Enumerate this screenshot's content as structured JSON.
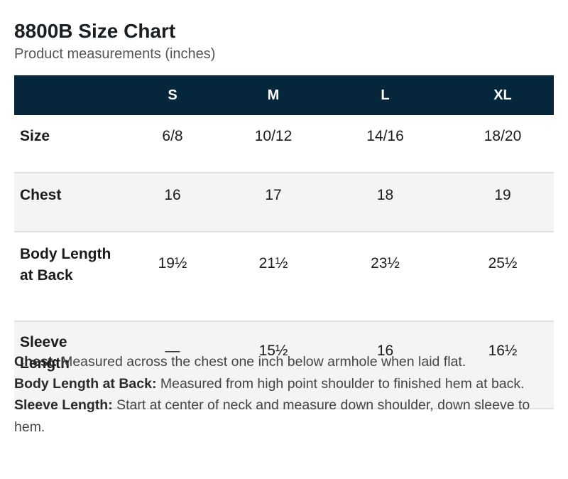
{
  "header": {
    "title": "8800B Size Chart",
    "subtitle": "Product measurements (inches)"
  },
  "table": {
    "columns": [
      "",
      "S",
      "M",
      "L",
      "XL"
    ],
    "rows": [
      {
        "label": "Size",
        "values": [
          "6/8",
          "10/12",
          "14/16",
          "18/20"
        ]
      },
      {
        "label": "Chest",
        "values": [
          "16",
          "17",
          "18",
          "19"
        ]
      },
      {
        "label_lines": [
          "Body Length",
          "at Back"
        ],
        "values": [
          "19½",
          "21½",
          "23½",
          "25½"
        ]
      },
      {
        "label_lines": [
          "Sleeve",
          "Length"
        ],
        "values": [
          "—",
          "15½",
          "16",
          "16½"
        ]
      }
    ]
  },
  "notes": [
    {
      "term": "Chest:",
      "text": " Measured across the chest one inch below armhole when laid flat."
    },
    {
      "term": "Body Length at Back:",
      "text": " Measured from high point shoulder to finished hem at back."
    },
    {
      "term": "Sleeve Length:",
      "text": " Start at center of neck and measure down shoulder, down sleeve to hem."
    }
  ],
  "colors": {
    "header_background": "#06263c",
    "stripe_background": "#f2f4f6"
  }
}
